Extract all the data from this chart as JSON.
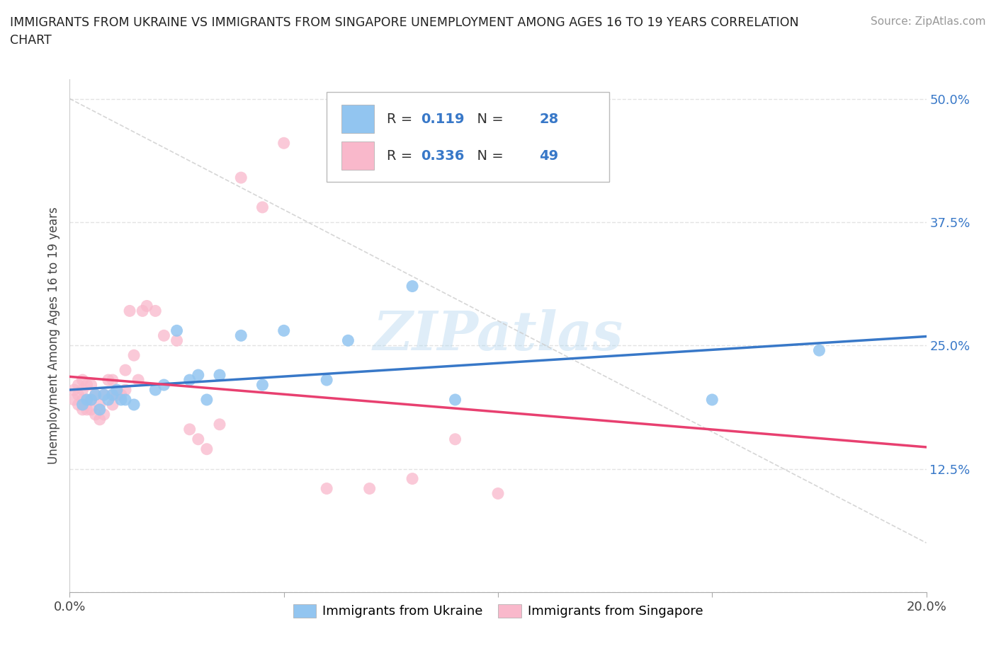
{
  "title_line1": "IMMIGRANTS FROM UKRAINE VS IMMIGRANTS FROM SINGAPORE UNEMPLOYMENT AMONG AGES 16 TO 19 YEARS CORRELATION",
  "title_line2": "CHART",
  "source": "Source: ZipAtlas.com",
  "ylabel": "Unemployment Among Ages 16 to 19 years",
  "xlim": [
    0.0,
    0.2
  ],
  "ylim": [
    0.0,
    0.52
  ],
  "xticks": [
    0.0,
    0.05,
    0.1,
    0.15,
    0.2
  ],
  "xticklabels": [
    "0.0%",
    "",
    "",
    "",
    "20.0%"
  ],
  "yticks": [
    0.0,
    0.125,
    0.25,
    0.375,
    0.5
  ],
  "yticklabels": [
    "",
    "12.5%",
    "25.0%",
    "37.5%",
    "50.0%"
  ],
  "ukraine_color": "#92c5f0",
  "singapore_color": "#f9b8cb",
  "ukraine_trend_color": "#3878c8",
  "singapore_trend_color": "#e84070",
  "ukraine_R": "0.119",
  "ukraine_N": "28",
  "singapore_R": "0.336",
  "singapore_N": "49",
  "ukraine_x": [
    0.003,
    0.004,
    0.005,
    0.006,
    0.007,
    0.008,
    0.009,
    0.01,
    0.011,
    0.012,
    0.013,
    0.015,
    0.02,
    0.022,
    0.025,
    0.028,
    0.03,
    0.032,
    0.035,
    0.04,
    0.045,
    0.05,
    0.06,
    0.065,
    0.08,
    0.09,
    0.15,
    0.175
  ],
  "ukraine_y": [
    0.19,
    0.195,
    0.195,
    0.2,
    0.185,
    0.2,
    0.195,
    0.2,
    0.205,
    0.195,
    0.195,
    0.19,
    0.205,
    0.21,
    0.265,
    0.215,
    0.22,
    0.195,
    0.22,
    0.26,
    0.21,
    0.265,
    0.215,
    0.255,
    0.31,
    0.195,
    0.195,
    0.245
  ],
  "singapore_x": [
    0.001,
    0.001,
    0.002,
    0.002,
    0.002,
    0.003,
    0.003,
    0.003,
    0.003,
    0.004,
    0.004,
    0.004,
    0.005,
    0.005,
    0.005,
    0.006,
    0.006,
    0.007,
    0.007,
    0.008,
    0.008,
    0.009,
    0.01,
    0.01,
    0.01,
    0.011,
    0.012,
    0.013,
    0.013,
    0.014,
    0.015,
    0.016,
    0.017,
    0.018,
    0.02,
    0.022,
    0.025,
    0.028,
    0.03,
    0.032,
    0.035,
    0.04,
    0.045,
    0.05,
    0.06,
    0.07,
    0.08,
    0.09,
    0.1
  ],
  "singapore_y": [
    0.195,
    0.205,
    0.19,
    0.2,
    0.21,
    0.185,
    0.195,
    0.205,
    0.215,
    0.185,
    0.195,
    0.21,
    0.185,
    0.195,
    0.21,
    0.18,
    0.2,
    0.175,
    0.19,
    0.18,
    0.2,
    0.215,
    0.19,
    0.2,
    0.215,
    0.2,
    0.2,
    0.205,
    0.225,
    0.285,
    0.24,
    0.215,
    0.285,
    0.29,
    0.285,
    0.26,
    0.255,
    0.165,
    0.155,
    0.145,
    0.17,
    0.42,
    0.39,
    0.455,
    0.105,
    0.105,
    0.115,
    0.155,
    0.1
  ],
  "legend_label_ukraine": "Immigrants from Ukraine",
  "legend_label_singapore": "Immigrants from Singapore",
  "watermark": "ZIPatlas",
  "background_color": "#ffffff",
  "grid_color": "#dddddd",
  "diag_line_color": "#cccccc"
}
